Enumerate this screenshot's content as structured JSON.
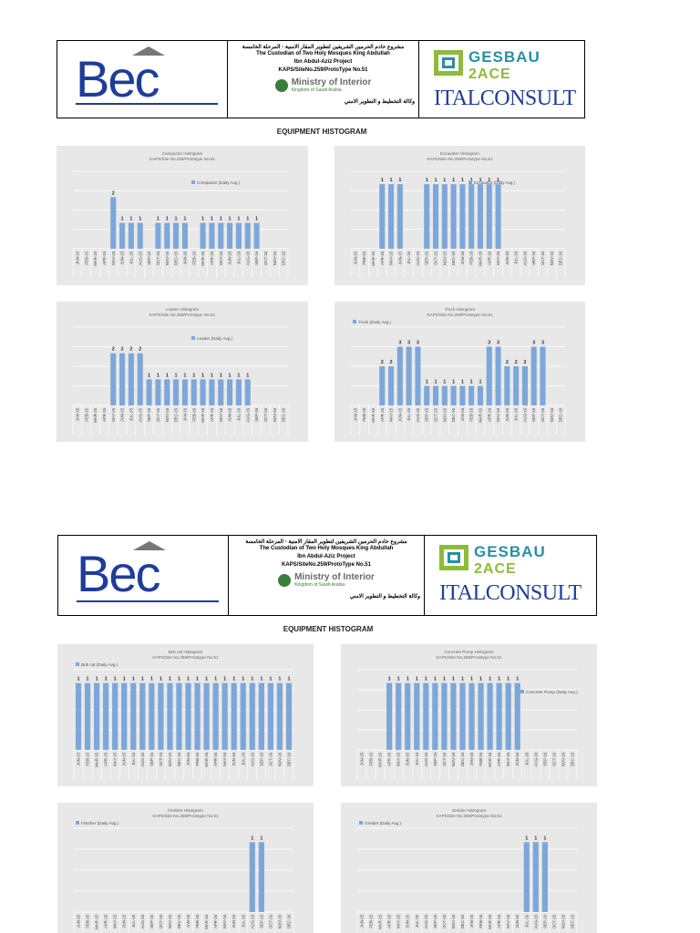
{
  "headers": [
    {
      "bec": "Bec",
      "ar_line1": "مشروع خادم الحرمين الشريفين لتطوير المقار الامنية - المرحلة الخامسة",
      "en_line1": "The Custodian of Two Holy Mosques King Abdullah",
      "en_line2": "Ibn Abdul-Aziz Project",
      "en_line3": "KAPS/SiteNo.259/ProtoType No.51",
      "moi_main": "Ministry of Interior",
      "moi_sub": "Kingdom of Saudi Arabia",
      "ar_line2": "وكالة التخطيط و التطوير الامني",
      "gesbau": "GESBAU",
      "zace": "2ACE",
      "italconsult": "ITALCONSULT"
    },
    {
      "bec": "Bec",
      "ar_line1": "مشروع خادم الحرمين الشريفين لتطوير المقار الامنية - المرحلة الخامسة",
      "en_line1": "The Custodian of Two Holy Mosques King Abdullah",
      "en_line2": "Ibn Abdul-Aziz Project",
      "en_line3": "KAPS/SiteNo.259/ProtoType No.51",
      "moi_main": "Ministry of Interior",
      "moi_sub": "Kingdom of Saudi Arabia",
      "ar_line2": "وكالة التخطيط و التطوير الامني",
      "gesbau": "GESBAU",
      "zace": "2ACE",
      "italconsult": "ITALCONSULT"
    }
  ],
  "section_titles": [
    "EQUIPMENT HISTOGRAM",
    "EQUIPMENT HISTOGRAM"
  ],
  "colors": {
    "bar": "#7da7d9",
    "chart_bg": "#e8e8e8",
    "grid": "#ffffff"
  },
  "chart_data": [
    {
      "type": "bar",
      "title": "Compactor Histogram",
      "subtitle": "KAPS/Site No.259/Prototype No.51",
      "legend": "Compactor (Daily Avg.)",
      "legend_position": "top-right",
      "ylim": [
        0,
        3
      ],
      "categories": [
        "JAN-15",
        "FEB-15",
        "MAR-15",
        "APR-15",
        "MAY-15",
        "JUN-15",
        "JUL-15",
        "AUG-15",
        "SEP-15",
        "OCT-15",
        "NOV-15",
        "DEC-15",
        "JAN-16",
        "FEB-16",
        "MAR-16",
        "APR-16",
        "MAY-16",
        "JUN-16",
        "JUL-16",
        "AUG-16",
        "SEP-16",
        "OCT-16",
        "NOV-16",
        "DEC-16"
      ],
      "values": [
        0,
        0,
        0,
        0,
        2,
        1,
        1,
        1,
        0,
        1,
        1,
        1,
        1,
        0,
        1,
        1,
        1,
        1,
        1,
        1,
        1,
        0,
        0,
        0
      ]
    },
    {
      "type": "bar",
      "title": "Excavator Histogram",
      "subtitle": "KAPS/Site No.259/Prototype No.51",
      "legend": "Excavator (Daily Avg.)",
      "legend_position": "top-right",
      "ylim": [
        0,
        1.2
      ],
      "categories": [
        "JAN-15",
        "FEB-15",
        "MAR-15",
        "APR-15",
        "MAY-15",
        "JUN-15",
        "JUL-15",
        "AUG-15",
        "SEP-15",
        "OCT-15",
        "NOV-15",
        "DEC-15",
        "JAN-16",
        "FEB-16",
        "MAR-16",
        "APR-16",
        "MAY-16",
        "JUN-16",
        "JUL-16",
        "AUG-16",
        "SEP-16",
        "OCT-16",
        "NOV-16",
        "DEC-16"
      ],
      "values": [
        0,
        0,
        0,
        1,
        1,
        1,
        0,
        0,
        1,
        1,
        1,
        1,
        1,
        1,
        1,
        1,
        1,
        0,
        0,
        0,
        0,
        0,
        0,
        0
      ]
    },
    {
      "type": "bar",
      "title": "Loader Histogram",
      "subtitle": "KAPS/Site No.259/Prototype No.51",
      "legend": "Loader (Daily Avg.)",
      "legend_position": "top-right",
      "ylim": [
        0,
        3
      ],
      "categories": [
        "JAN-15",
        "FEB-15",
        "MAR-15",
        "APR-15",
        "MAY-15",
        "JUN-15",
        "JUL-15",
        "AUG-15",
        "SEP-15",
        "OCT-15",
        "NOV-15",
        "DEC-15",
        "JAN-16",
        "FEB-16",
        "MAR-16",
        "APR-16",
        "MAY-16",
        "JUN-16",
        "JUL-16",
        "AUG-16",
        "SEP-16",
        "OCT-16",
        "NOV-16",
        "DEC-16"
      ],
      "values": [
        0,
        0,
        0,
        0,
        2,
        2,
        2,
        2,
        1,
        1,
        1,
        1,
        1,
        1,
        1,
        1,
        1,
        1,
        1,
        1,
        0,
        0,
        0,
        0
      ]
    },
    {
      "type": "bar",
      "title": "Truck Histogram",
      "subtitle": "KAPS/Site No.259/Prototype No.51",
      "legend": "Truck (Daily Avg.)",
      "legend_position": "top-left",
      "ylim": [
        0,
        4
      ],
      "categories": [
        "JAN-15",
        "FEB-15",
        "MAR-15",
        "APR-15",
        "MAY-15",
        "JUN-15",
        "JUL-15",
        "AUG-15",
        "SEP-15",
        "OCT-15",
        "NOV-15",
        "DEC-15",
        "JAN-16",
        "FEB-16",
        "MAR-16",
        "APR-16",
        "MAY-16",
        "JUN-16",
        "JUL-16",
        "AUG-16",
        "SEP-16",
        "OCT-16",
        "NOV-16",
        "DEC-16"
      ],
      "values": [
        0,
        0,
        0,
        2,
        2,
        3,
        3,
        3,
        1,
        1,
        1,
        1,
        1,
        1,
        1,
        3,
        3,
        2,
        2,
        2,
        3,
        3,
        0,
        0
      ]
    },
    {
      "type": "bar",
      "title": "Bob cat Histogram",
      "subtitle": "KAPS/Site No.259/Prototype No.51",
      "legend": "Bob cat (Daily Avg.)",
      "legend_position": "top-left",
      "ylim": [
        0,
        1.2
      ],
      "categories": [
        "JAN-15",
        "FEB-15",
        "MAR-15",
        "APR-15",
        "MAY-15",
        "JUN-15",
        "JUL-15",
        "AUG-15",
        "SEP-15",
        "OCT-15",
        "NOV-15",
        "DEC-15",
        "JAN-16",
        "FEB-16",
        "MAR-16",
        "APR-16",
        "MAY-16",
        "JUN-16",
        "JUL-16",
        "AUG-16",
        "SEP-16",
        "OCT-16",
        "NOV-16",
        "DEC-16"
      ],
      "values": [
        1,
        1,
        1,
        1,
        1,
        1,
        1,
        1,
        1,
        1,
        1,
        1,
        1,
        1,
        1,
        1,
        1,
        1,
        1,
        1,
        1,
        1,
        1,
        1
      ]
    },
    {
      "type": "bar",
      "title": "Concrete Pump Histogram",
      "subtitle": "KAPS/Site No.259/Prototype No.51",
      "legend": "Concrete Pump (Daily Avg.)",
      "legend_position": "right",
      "ylim": [
        0,
        1.2
      ],
      "categories": [
        "JAN-15",
        "FEB-15",
        "MAR-15",
        "APR-15",
        "MAY-15",
        "JUN-15",
        "JUL-15",
        "AUG-15",
        "SEP-15",
        "OCT-15",
        "NOV-15",
        "DEC-15",
        "JAN-16",
        "FEB-16",
        "MAR-16",
        "APR-16",
        "MAY-16",
        "JUN-16",
        "JUL-16",
        "AUG-16",
        "SEP-16",
        "OCT-16",
        "NOV-16",
        "DEC-16"
      ],
      "values": [
        0,
        0,
        0,
        1,
        1,
        1,
        1,
        1,
        1,
        1,
        1,
        1,
        1,
        1,
        1,
        1,
        1,
        1,
        0,
        0,
        0,
        0,
        0,
        0
      ]
    },
    {
      "type": "bar",
      "title": "Finisher Histogram",
      "subtitle": "KAPS/Site No.259/Prototype No.51",
      "legend": "Finisher (Daily Avg.)",
      "legend_position": "top-left",
      "ylim": [
        0,
        1.2
      ],
      "categories": [
        "JAN-15",
        "FEB-15",
        "MAR-15",
        "APR-15",
        "MAY-15",
        "JUN-15",
        "JUL-15",
        "AUG-15",
        "SEP-15",
        "OCT-15",
        "NOV-15",
        "DEC-15",
        "JAN-16",
        "FEB-16",
        "MAR-16",
        "APR-16",
        "MAY-16",
        "JUN-16",
        "JUL-16",
        "AUG-16",
        "SEP-16",
        "OCT-16",
        "NOV-16",
        "DEC-16"
      ],
      "values": [
        0,
        0,
        0,
        0,
        0,
        0,
        0,
        0,
        0,
        0,
        0,
        0,
        0,
        0,
        0,
        0,
        0,
        0,
        0,
        1,
        1,
        0,
        0,
        0
      ]
    },
    {
      "type": "bar",
      "title": "Greider Histogram",
      "subtitle": "KAPS/Site No.259/Prototype No.51",
      "legend": "Greider (Daily Avg.)",
      "legend_position": "top-left",
      "ylim": [
        0,
        1.2
      ],
      "categories": [
        "JAN-15",
        "FEB-15",
        "MAR-15",
        "APR-15",
        "MAY-15",
        "JUN-15",
        "JUL-15",
        "AUG-15",
        "SEP-15",
        "OCT-15",
        "NOV-15",
        "DEC-15",
        "JAN-16",
        "FEB-16",
        "MAR-16",
        "APR-16",
        "MAY-16",
        "JUN-16",
        "JUL-16",
        "AUG-16",
        "SEP-16",
        "OCT-16",
        "NOV-16",
        "DEC-16"
      ],
      "values": [
        0,
        0,
        0,
        0,
        0,
        0,
        0,
        0,
        0,
        0,
        0,
        0,
        0,
        0,
        0,
        0,
        0,
        0,
        1,
        1,
        1,
        0,
        0,
        0
      ]
    }
  ]
}
